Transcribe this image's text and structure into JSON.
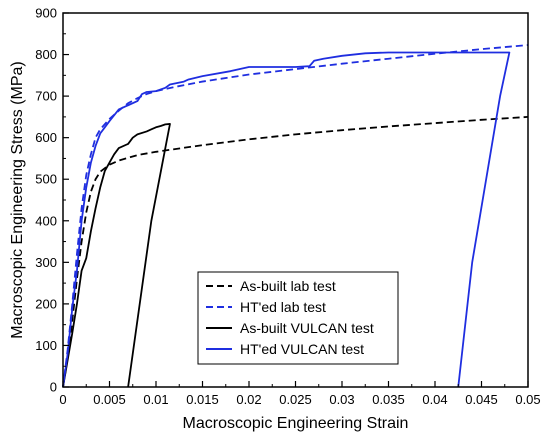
{
  "chart_data": {
    "type": "line",
    "title": "",
    "xlabel": "Macroscopic Engineering Strain",
    "ylabel": "Macroscopic Engineering Stress (MPa)",
    "xlim": [
      0,
      0.05
    ],
    "ylim": [
      0,
      900
    ],
    "xticks": [
      "0",
      "0.005",
      "0.01",
      "0.015",
      "0.02",
      "0.025",
      "0.03",
      "0.035",
      "0.04",
      "0.045",
      "0.05"
    ],
    "yticks": [
      "0",
      "100",
      "200",
      "300",
      "400",
      "500",
      "600",
      "700",
      "800",
      "900"
    ],
    "grid": false,
    "legend_position": "lower-center",
    "series": [
      {
        "name": "As-built lab test",
        "color": "#000000",
        "dash": "dashed",
        "points": [
          [
            0,
            0
          ],
          [
            0.0005,
            70
          ],
          [
            0.001,
            160
          ],
          [
            0.0015,
            260
          ],
          [
            0.002,
            350
          ],
          [
            0.0025,
            420
          ],
          [
            0.003,
            470
          ],
          [
            0.0035,
            500
          ],
          [
            0.004,
            518
          ],
          [
            0.005,
            535
          ],
          [
            0.006,
            545
          ],
          [
            0.008,
            558
          ],
          [
            0.01,
            566
          ],
          [
            0.015,
            582
          ],
          [
            0.02,
            596
          ],
          [
            0.025,
            608
          ],
          [
            0.03,
            618
          ],
          [
            0.035,
            627
          ],
          [
            0.04,
            635
          ],
          [
            0.045,
            643
          ],
          [
            0.05,
            650
          ]
        ]
      },
      {
        "name": "HT'ed lab test",
        "color": "#1f2ee0",
        "dash": "dashed",
        "points": [
          [
            0,
            0
          ],
          [
            0.0005,
            90
          ],
          [
            0.001,
            200
          ],
          [
            0.0015,
            320
          ],
          [
            0.002,
            430
          ],
          [
            0.0025,
            510
          ],
          [
            0.003,
            560
          ],
          [
            0.0035,
            600
          ],
          [
            0.004,
            620
          ],
          [
            0.005,
            645
          ],
          [
            0.006,
            665
          ],
          [
            0.007,
            683
          ],
          [
            0.008,
            695
          ],
          [
            0.009,
            705
          ],
          [
            0.01,
            712
          ],
          [
            0.012,
            722
          ],
          [
            0.015,
            735
          ],
          [
            0.02,
            752
          ],
          [
            0.025,
            765
          ],
          [
            0.03,
            778
          ],
          [
            0.035,
            790
          ],
          [
            0.04,
            802
          ],
          [
            0.045,
            813
          ],
          [
            0.05,
            823
          ]
        ]
      },
      {
        "name": "As-built VULCAN test",
        "color": "#000000",
        "dash": "solid",
        "points": [
          [
            0,
            0
          ],
          [
            0.001,
            130
          ],
          [
            0.0015,
            200
          ],
          [
            0.002,
            280
          ],
          [
            0.0025,
            310
          ],
          [
            0.003,
            375
          ],
          [
            0.0035,
            430
          ],
          [
            0.004,
            480
          ],
          [
            0.0045,
            520
          ],
          [
            0.005,
            540
          ],
          [
            0.0055,
            560
          ],
          [
            0.006,
            575
          ],
          [
            0.007,
            585
          ],
          [
            0.0075,
            600
          ],
          [
            0.008,
            608
          ],
          [
            0.009,
            615
          ],
          [
            0.0095,
            620
          ],
          [
            0.01,
            625
          ],
          [
            0.0105,
            628
          ],
          [
            0.011,
            632
          ],
          [
            0.0115,
            633
          ],
          [
            0.0095,
            400
          ],
          [
            0.0085,
            240
          ],
          [
            0.0075,
            80
          ],
          [
            0.007,
            0
          ]
        ]
      },
      {
        "name": "HT'ed VULCAN test",
        "color": "#1f2ee0",
        "dash": "solid",
        "points": [
          [
            0,
            0
          ],
          [
            0.0005,
            80
          ],
          [
            0.001,
            190
          ],
          [
            0.0015,
            280
          ],
          [
            0.002,
            400
          ],
          [
            0.0025,
            480
          ],
          [
            0.003,
            540
          ],
          [
            0.0035,
            580
          ],
          [
            0.004,
            610
          ],
          [
            0.0045,
            625
          ],
          [
            0.005,
            640
          ],
          [
            0.006,
            668
          ],
          [
            0.007,
            678
          ],
          [
            0.008,
            688
          ],
          [
            0.0085,
            705
          ],
          [
            0.009,
            710
          ],
          [
            0.01,
            712
          ],
          [
            0.011,
            720
          ],
          [
            0.0115,
            728
          ],
          [
            0.013,
            735
          ],
          [
            0.0135,
            740
          ],
          [
            0.015,
            748
          ],
          [
            0.018,
            760
          ],
          [
            0.02,
            770
          ],
          [
            0.022,
            770
          ],
          [
            0.025,
            770
          ],
          [
            0.0265,
            772
          ],
          [
            0.027,
            785
          ],
          [
            0.028,
            790
          ],
          [
            0.03,
            797
          ],
          [
            0.0325,
            803
          ],
          [
            0.035,
            805
          ],
          [
            0.04,
            805
          ],
          [
            0.045,
            805
          ],
          [
            0.048,
            805
          ],
          [
            0.047,
            700
          ],
          [
            0.0455,
            500
          ],
          [
            0.044,
            300
          ],
          [
            0.043,
            100
          ],
          [
            0.0425,
            0
          ]
        ]
      }
    ]
  }
}
